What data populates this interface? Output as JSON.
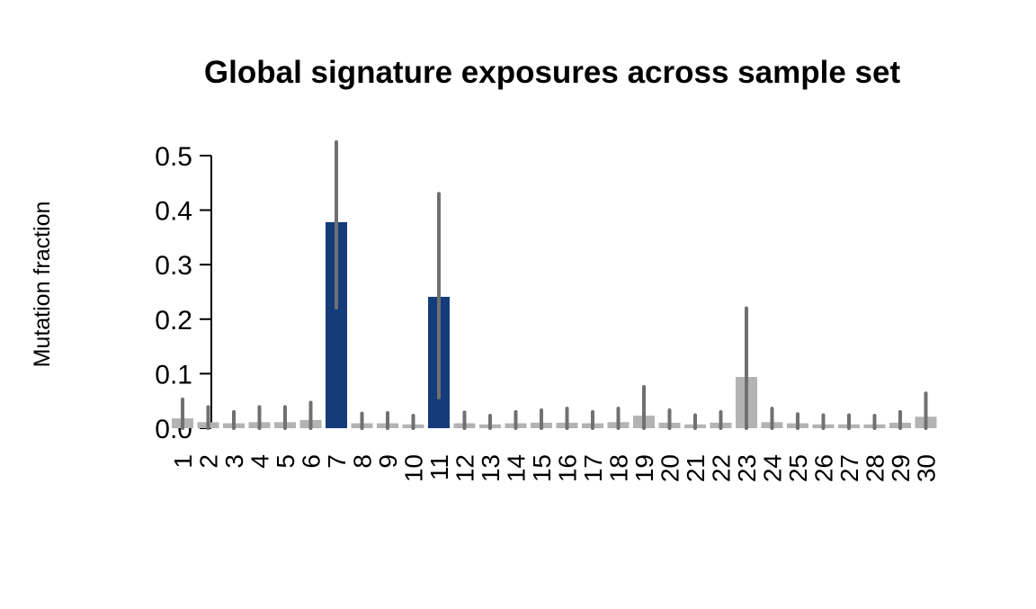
{
  "chart_data": {
    "type": "bar",
    "title": "Global signature exposures across sample set",
    "xlabel": "",
    "ylabel": "Mutation fraction",
    "ylim": [
      0,
      0.5
    ],
    "yticks": [
      "0.0",
      "0.1",
      "0.2",
      "0.3",
      "0.4",
      "0.5"
    ],
    "grid": false,
    "categories": [
      "1",
      "2",
      "3",
      "4",
      "5",
      "6",
      "7",
      "8",
      "9",
      "10",
      "11",
      "12",
      "13",
      "14",
      "15",
      "16",
      "17",
      "18",
      "19",
      "20",
      "21",
      "22",
      "23",
      "24",
      "25",
      "26",
      "27",
      "28",
      "29",
      "30"
    ],
    "values": [
      0.018,
      0.011,
      0.009,
      0.011,
      0.011,
      0.015,
      0.378,
      0.009,
      0.009,
      0.007,
      0.241,
      0.009,
      0.007,
      0.009,
      0.01,
      0.01,
      0.009,
      0.011,
      0.023,
      0.01,
      0.007,
      0.01,
      0.094,
      0.011,
      0.009,
      0.007,
      0.007,
      0.007,
      0.01,
      0.021
    ],
    "error_lower": [
      0,
      0,
      0,
      0,
      0,
      0,
      0.221,
      0,
      0,
      0,
      0.056,
      0,
      0,
      0,
      0,
      0,
      0,
      0,
      0,
      0,
      0,
      0,
      0,
      0,
      0,
      0,
      0,
      0,
      0,
      0
    ],
    "error_upper": [
      0.053,
      0.039,
      0.03,
      0.039,
      0.039,
      0.047,
      0.525,
      0.027,
      0.028,
      0.023,
      0.43,
      0.029,
      0.023,
      0.03,
      0.033,
      0.036,
      0.03,
      0.036,
      0.076,
      0.033,
      0.024,
      0.03,
      0.22,
      0.036,
      0.026,
      0.024,
      0.024,
      0.023,
      0.03,
      0.064
    ],
    "highlighted": [
      "7",
      "11"
    ],
    "colors": {
      "highlight": "#143C7A",
      "default": "#B3B3B3",
      "error_bar": "#707070"
    }
  }
}
